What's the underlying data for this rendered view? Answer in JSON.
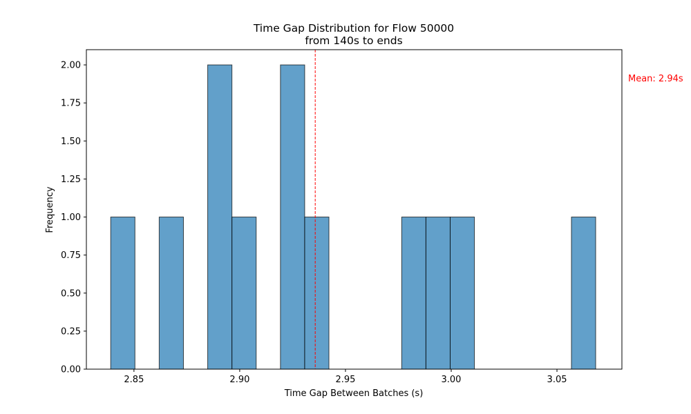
{
  "chart_data": {
    "type": "bar",
    "title": "Time Gap Distribution for Flow 50000",
    "subtitle": "from 140s to ends",
    "xlabel": "Time Gap Between Batches (s)",
    "ylabel": "Frequency",
    "xlim": [
      2.8275,
      3.0807
    ],
    "ylim": [
      0,
      2.1
    ],
    "xticks": [
      2.85,
      2.9,
      2.95,
      3.0,
      3.05
    ],
    "xtick_labels": [
      "2.85",
      "2.90",
      "2.95",
      "3.00",
      "3.05"
    ],
    "yticks": [
      0,
      0.25,
      0.5,
      0.75,
      1.0,
      1.25,
      1.5,
      1.75,
      2.0
    ],
    "ytick_labels": [
      "0.00",
      "0.25",
      "0.50",
      "0.75",
      "1.00",
      "1.25",
      "1.50",
      "1.75",
      "2.00"
    ],
    "bin_start": 2.839,
    "bin_width": 0.011465,
    "bin_counts": [
      1,
      0,
      1,
      0,
      2,
      1,
      0,
      2,
      1,
      0,
      0,
      0,
      1,
      1,
      1,
      0,
      0,
      0,
      0,
      1
    ],
    "bar_color": "#1f77b4",
    "bar_alpha": 0.7,
    "edge_color": "#000000",
    "mean": {
      "value": 2.9357,
      "label": "Mean: 2.94s",
      "color": "#ff0000",
      "style": "dashed"
    },
    "grid": false,
    "legend": "none"
  }
}
